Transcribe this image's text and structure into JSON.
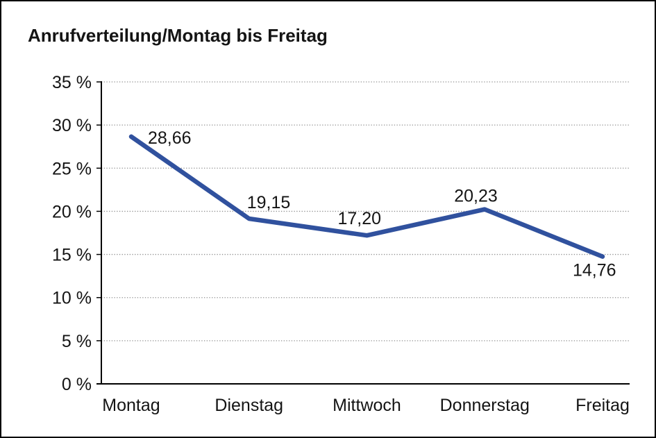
{
  "chart_data": {
    "type": "line",
    "title": "Anrufverteilung/Montag bis Freitag",
    "categories": [
      "Montag",
      "Dienstag",
      "Mittwoch",
      "Donnerstag",
      "Freitag"
    ],
    "values": [
      28.66,
      19.15,
      17.2,
      20.23,
      14.76
    ],
    "value_labels": [
      "28,66",
      "19,15",
      "17,20",
      "20,23",
      "14,76"
    ],
    "series_name": "Anrufverteilung",
    "xlabel": "",
    "ylabel": "",
    "y_axis": {
      "min": 0,
      "max": 35,
      "step": 5,
      "tick_labels": [
        "0 %",
        "5 %",
        "10 %",
        "15 %",
        "20 %",
        "25 %",
        "30 %",
        "35 %"
      ]
    },
    "grid": "dotted-horizontal",
    "legend": "none",
    "colors": {
      "line": "#30519E",
      "grid": "#8F8F8F",
      "axis": "#000000",
      "text": "#141414",
      "background": "#FFFFFF",
      "border": "#000000"
    }
  }
}
